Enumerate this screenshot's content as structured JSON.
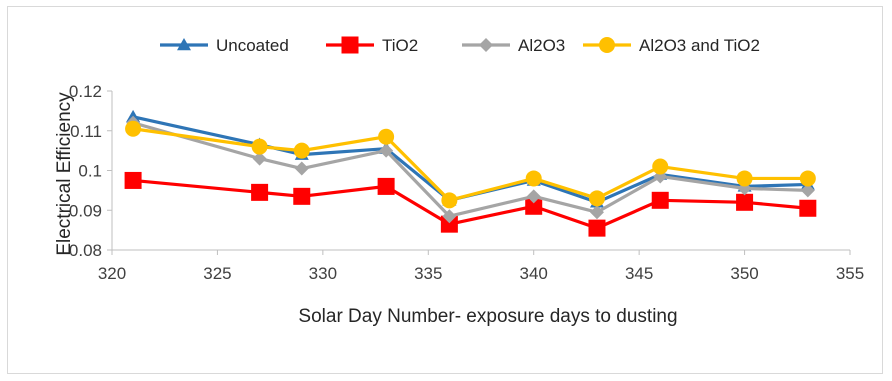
{
  "chart_data": {
    "type": "line",
    "title": "",
    "xlabel": "Solar Day Number- exposure days to dusting",
    "ylabel": "Electrical Efficiency",
    "xlim": [
      320,
      355
    ],
    "ylim": [
      0.08,
      0.12
    ],
    "x_ticks": [
      "320",
      "325",
      "330",
      "335",
      "340",
      "345",
      "350",
      "355"
    ],
    "y_ticks": [
      "0.08",
      "0.09",
      "0.1",
      "0.11",
      "0.12"
    ],
    "grid": false,
    "legend_position": "top",
    "x": [
      321,
      327,
      329,
      333,
      336,
      340,
      343,
      346,
      350,
      353
    ],
    "series": [
      {
        "name": "Uncoated",
        "color": "#2e75b6",
        "marker": "triangle",
        "values": [
          0.1135,
          0.1065,
          0.104,
          0.1055,
          0.0925,
          0.0975,
          0.092,
          0.099,
          0.096,
          0.0965
        ]
      },
      {
        "name": "TiO2",
        "color": "#ff0000",
        "marker": "square",
        "values": [
          0.0975,
          0.0945,
          0.0935,
          0.096,
          0.0865,
          0.091,
          0.0855,
          0.0925,
          0.092,
          0.0905
        ]
      },
      {
        "name": "Al2O3",
        "color": "#a5a5a5",
        "marker": "diamond",
        "values": [
          0.112,
          0.103,
          0.1005,
          0.105,
          0.0885,
          0.0935,
          0.0895,
          0.0985,
          0.0955,
          0.095
        ]
      },
      {
        "name": "Al2O3 and TiO2",
        "color": "#ffc000",
        "marker": "circle",
        "values": [
          0.1105,
          0.106,
          0.105,
          0.1085,
          0.0925,
          0.098,
          0.093,
          0.101,
          0.098,
          0.098
        ]
      }
    ]
  }
}
